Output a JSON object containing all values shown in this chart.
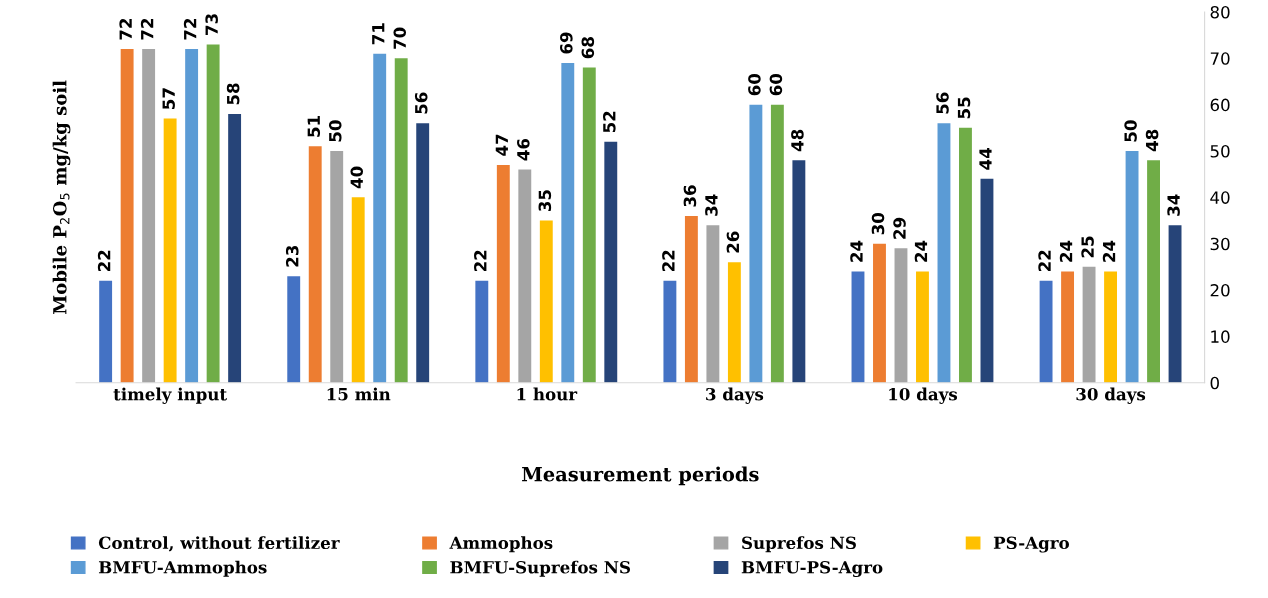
{
  "chart_data": {
    "type": "bar",
    "xlabel": "Measurement periods",
    "ylabel": "Mobile P$_{2}$O$_{5}$ mg/kg soil",
    "categories": [
      "timely input",
      "15 min",
      "1 hour",
      "3 days",
      "10 days",
      "30 days"
    ],
    "series": [
      {
        "name": "Control, without fertilizer",
        "color": "#4472c4",
        "values": [
          22,
          23,
          22,
          22,
          24,
          22
        ]
      },
      {
        "name": "Ammophos",
        "color": "#ed7d31",
        "values": [
          72,
          51,
          47,
          36,
          30,
          24
        ]
      },
      {
        "name": "Suprefos NS",
        "color": "#a5a5a5",
        "values": [
          72,
          50,
          46,
          34,
          29,
          25
        ]
      },
      {
        "name": "PS-Agro",
        "color": "#ffc000",
        "values": [
          57,
          40,
          35,
          26,
          24,
          24
        ]
      },
      {
        "name": "BMFU-Ammophos",
        "color": "#5b9bd5",
        "values": [
          72,
          71,
          69,
          60,
          56,
          50
        ]
      },
      {
        "name": "BMFU-Suprefos NS",
        "color": "#70ad47",
        "values": [
          73,
          70,
          68,
          60,
          55,
          48
        ]
      },
      {
        "name": "BMFU-PS-Agro",
        "color": "#264478",
        "values": [
          58,
          56,
          52,
          48,
          44,
          34
        ]
      }
    ],
    "ylim": [
      0,
      80
    ],
    "yticks": [
      0,
      10,
      20,
      30,
      40,
      50,
      60,
      70,
      80
    ],
    "data_labels": true,
    "grid": false,
    "legend": "bottom"
  }
}
